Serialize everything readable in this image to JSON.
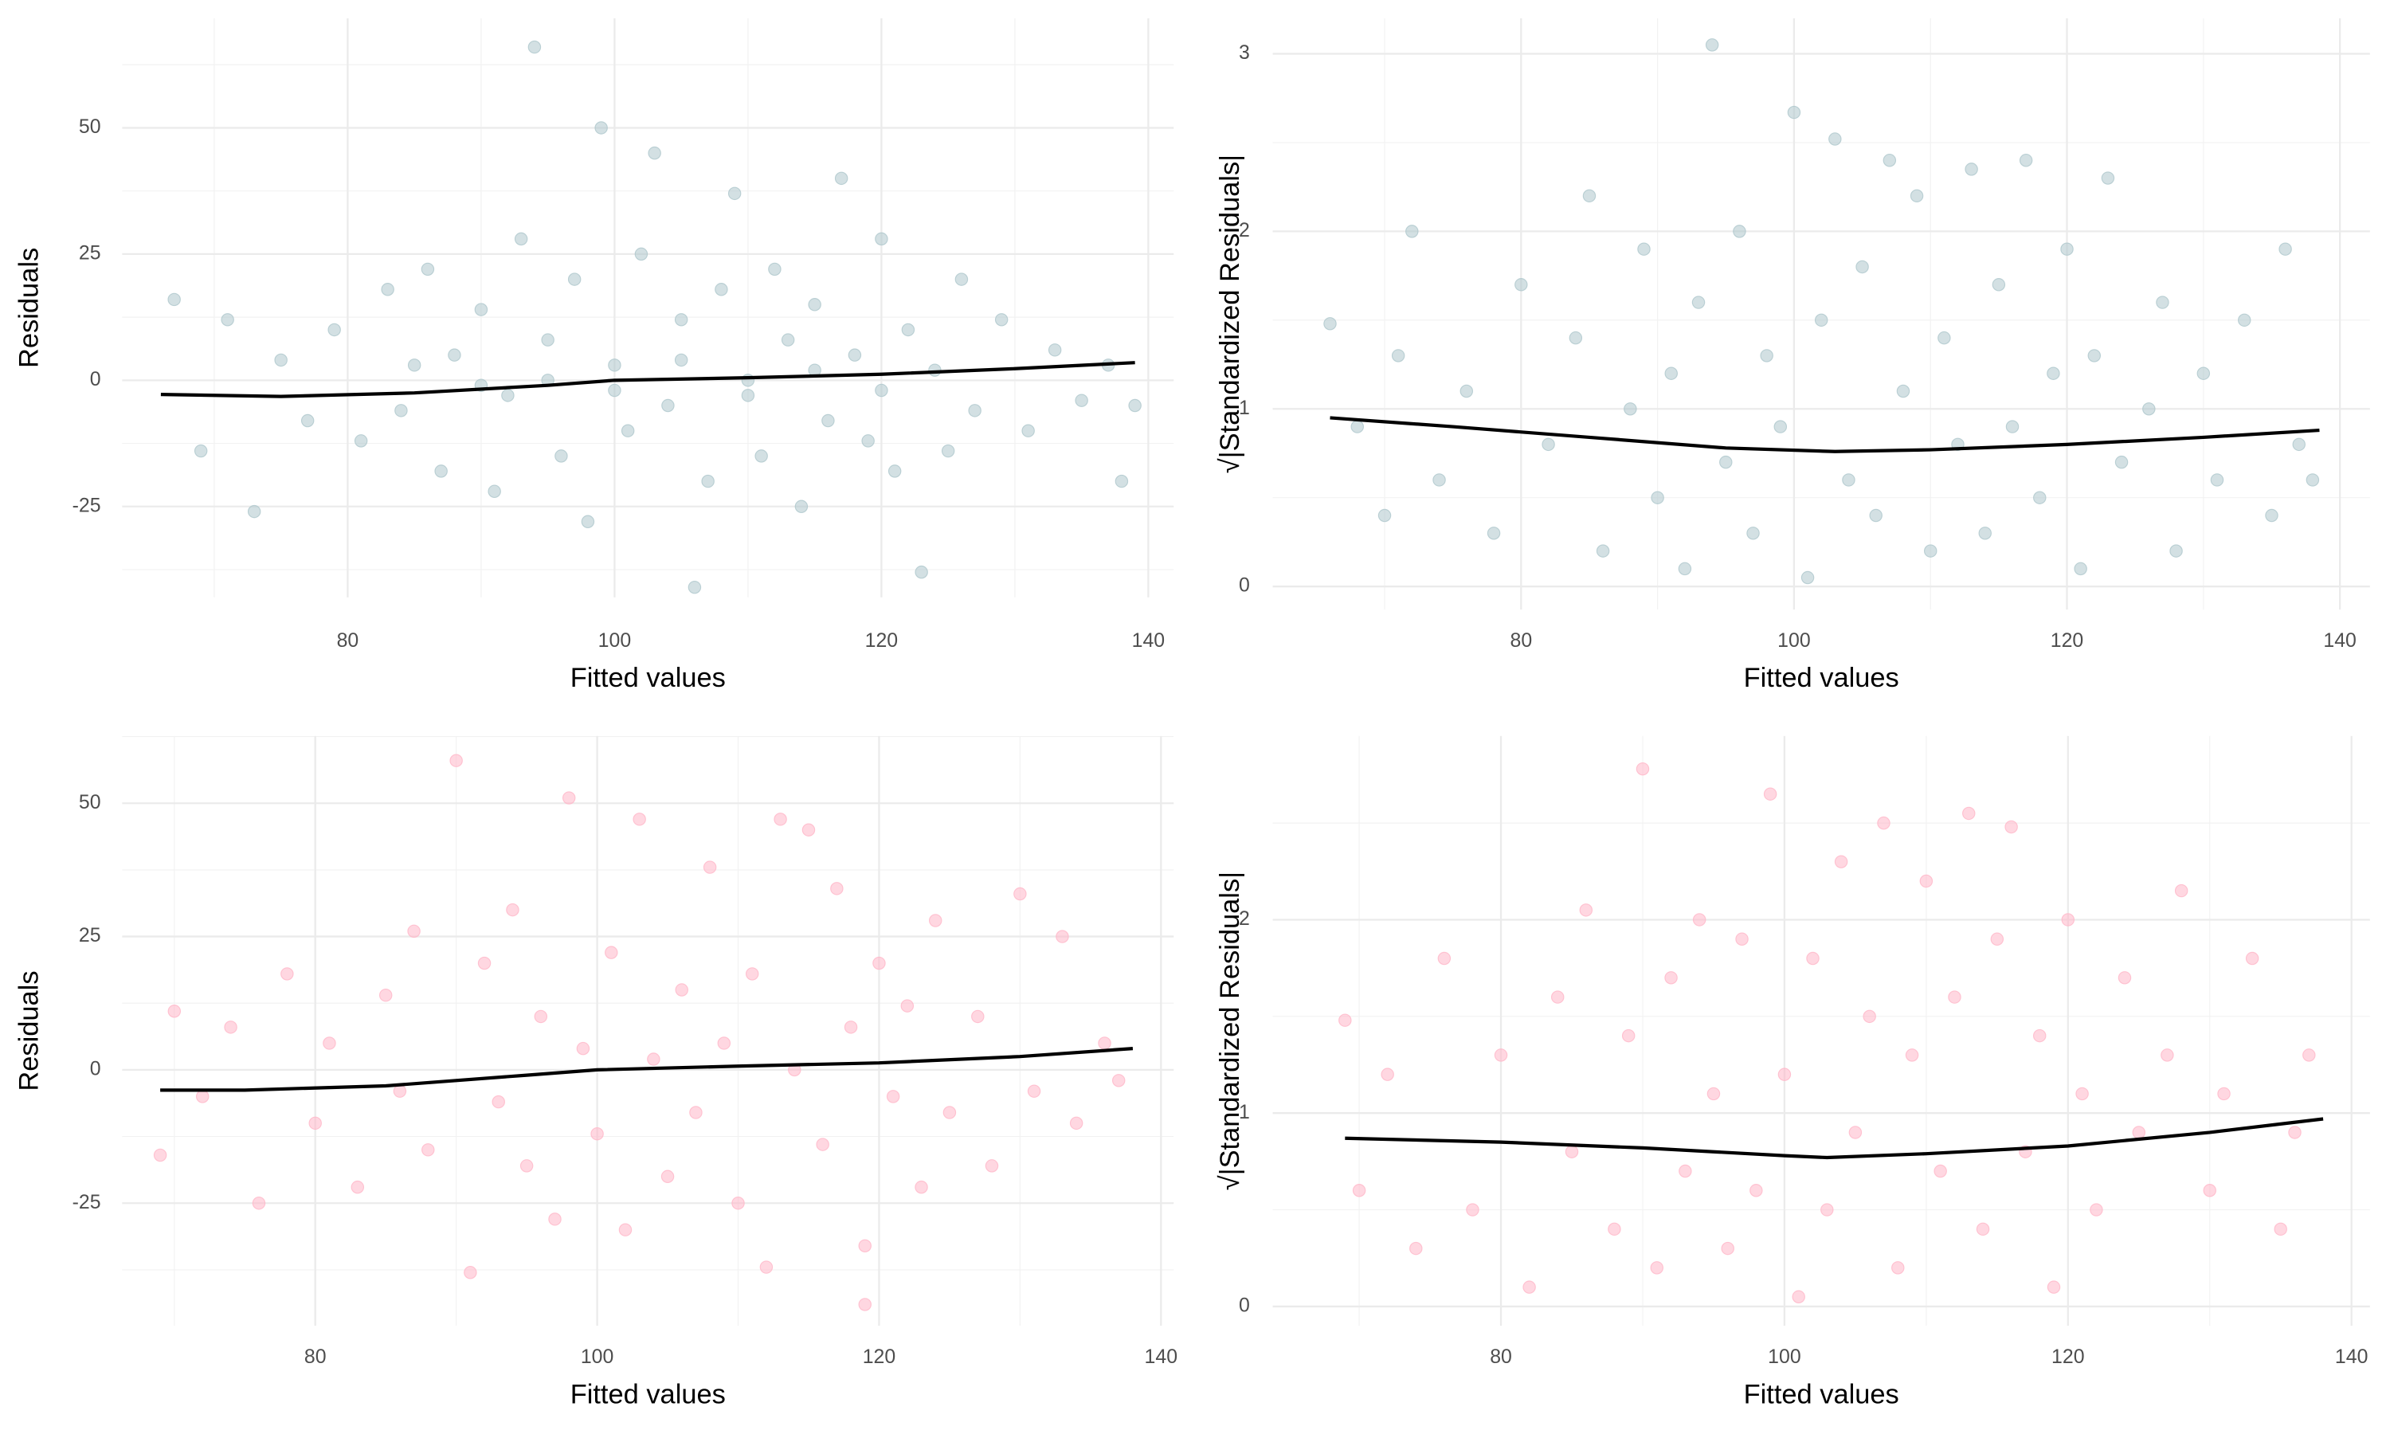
{
  "chart_data": [
    {
      "type": "scatter",
      "x_label": "Fitted values",
      "y_label": "Residuals",
      "color": "#aec7cc",
      "line_color": "#000000",
      "grid": true,
      "xlim": [
        63.1,
        141.9
      ],
      "ylim": [
        -43,
        71.7
      ],
      "xticks": [
        80,
        100,
        120,
        140
      ],
      "yticks": [
        -25,
        0,
        25,
        50
      ],
      "x": [
        67,
        69,
        71,
        73,
        75,
        77,
        79,
        81,
        83,
        84,
        86,
        87,
        88,
        90,
        91,
        92,
        93,
        94,
        95,
        96,
        97,
        98,
        99,
        100,
        101,
        102,
        103,
        104,
        105,
        106,
        107,
        108,
        109,
        110,
        111,
        112,
        113,
        114,
        115,
        116,
        117,
        118,
        119,
        120,
        121,
        122,
        123,
        124,
        125,
        126,
        127,
        129,
        131,
        133,
        135,
        137,
        138,
        139,
        95,
        100,
        105,
        110,
        115,
        90,
        85,
        120
      ],
      "y": [
        16,
        -14,
        12,
        -26,
        4,
        -8,
        10,
        -12,
        18,
        -6,
        22,
        -18,
        5,
        14,
        -22,
        -3,
        28,
        66,
        8,
        -15,
        20,
        -28,
        50,
        3,
        -10,
        25,
        45,
        -5,
        12,
        -41,
        -20,
        18,
        37,
        0,
        -15,
        22,
        8,
        -25,
        15,
        -8,
        40,
        5,
        -12,
        28,
        -18,
        10,
        -38,
        2,
        -14,
        20,
        -6,
        12,
        -10,
        6,
        -4,
        3,
        -20,
        -5,
        0,
        -2,
        4,
        -3,
        2,
        -1,
        3,
        -2
      ],
      "smooth": {
        "x": [
          66,
          75,
          85,
          95,
          100,
          110,
          120,
          130,
          139
        ],
        "y": [
          -2.8,
          -3.2,
          -2.5,
          -1,
          0,
          0.5,
          1.2,
          2.3,
          3.5
        ]
      }
    },
    {
      "type": "scatter",
      "x_label": "Fitted values",
      "y_label": "√|Standardized Residuals|",
      "color": "#aec7cc",
      "line_color": "#000000",
      "grid": true,
      "xlim": [
        61.8,
        142.2
      ],
      "ylim": [
        -0.13,
        3.2
      ],
      "xticks": [
        80,
        100,
        120,
        140
      ],
      "yticks": [
        0,
        1,
        2,
        3
      ],
      "x": [
        66,
        68,
        70,
        71,
        72,
        74,
        76,
        78,
        80,
        82,
        84,
        85,
        86,
        88,
        89,
        90,
        91,
        92,
        93,
        94,
        95,
        96,
        97,
        98,
        99,
        100,
        101,
        102,
        103,
        104,
        105,
        106,
        107,
        108,
        109,
        110,
        111,
        112,
        113,
        114,
        115,
        116,
        117,
        118,
        119,
        120,
        121,
        122,
        123,
        124,
        126,
        127,
        128,
        130,
        131,
        133,
        135,
        136,
        137,
        138
      ],
      "y": [
        1.48,
        0.9,
        0.4,
        1.3,
        2.0,
        0.6,
        1.1,
        0.3,
        1.7,
        0.8,
        1.4,
        2.2,
        0.2,
        1.0,
        1.9,
        0.5,
        1.2,
        0.1,
        1.6,
        3.05,
        0.7,
        2.0,
        0.3,
        1.3,
        0.9,
        2.67,
        0.05,
        1.5,
        2.52,
        0.6,
        1.8,
        0.4,
        2.4,
        1.1,
        2.2,
        0.2,
        1.4,
        0.8,
        2.35,
        0.3,
        1.7,
        0.9,
        2.4,
        0.5,
        1.2,
        1.9,
        0.1,
        1.3,
        2.3,
        0.7,
        1.0,
        1.6,
        0.2,
        1.2,
        0.6,
        1.5,
        0.4,
        1.9,
        0.8,
        0.6
      ],
      "smooth": {
        "x": [
          66,
          75,
          85,
          95,
          103,
          110,
          120,
          130,
          138.5
        ],
        "y": [
          0.95,
          0.9,
          0.84,
          0.78,
          0.76,
          0.77,
          0.8,
          0.84,
          0.88
        ]
      }
    },
    {
      "type": "scatter",
      "x_label": "Fitted values",
      "y_label": "Residuals",
      "color": "#ffb6c8",
      "line_color": "#000000",
      "grid": true,
      "xlim": [
        66.3,
        140.9
      ],
      "ylim": [
        -48,
        62.6
      ],
      "xticks": [
        80,
        100,
        120,
        140
      ],
      "yticks": [
        -25,
        0,
        25,
        50
      ],
      "x": [
        69,
        70,
        72,
        74,
        76,
        78,
        80,
        81,
        83,
        85,
        86,
        87,
        88,
        90,
        91,
        92,
        93,
        94,
        95,
        96,
        97,
        98,
        99,
        100,
        101,
        102,
        103,
        104,
        105,
        106,
        107,
        108,
        109,
        110,
        111,
        112,
        113,
        114,
        115,
        116,
        117,
        118,
        119,
        120,
        121,
        122,
        123,
        124,
        125,
        127,
        128,
        130,
        131,
        133,
        134,
        136,
        137,
        119
      ],
      "y": [
        -16,
        11,
        -5,
        8,
        -25,
        18,
        -10,
        5,
        -22,
        14,
        -4,
        26,
        -15,
        58,
        -38,
        20,
        -6,
        30,
        -18,
        10,
        -28,
        51,
        4,
        -12,
        22,
        -30,
        47,
        2,
        -20,
        15,
        -8,
        38,
        5,
        -25,
        18,
        -37,
        47,
        0,
        45,
        -14,
        34,
        8,
        -33,
        20,
        -5,
        12,
        -22,
        28,
        -8,
        10,
        -18,
        33,
        -4,
        25,
        -10,
        5,
        -2,
        -44
      ],
      "smooth": {
        "x": [
          69,
          75,
          85,
          95,
          100,
          110,
          120,
          130,
          138
        ],
        "y": [
          -3.8,
          -3.8,
          -3,
          -1,
          0,
          0.7,
          1.3,
          2.5,
          4
        ]
      }
    },
    {
      "type": "scatter",
      "x_label": "Fitted values",
      "y_label": "√|Standardized Residuals|",
      "color": "#ffb6c8",
      "line_color": "#000000",
      "grid": true,
      "xlim": [
        63.9,
        141.3
      ],
      "ylim": [
        -0.1,
        2.95
      ],
      "xticks": [
        80,
        100,
        120,
        140
      ],
      "yticks": [
        0,
        1,
        2
      ],
      "x": [
        69,
        70,
        72,
        74,
        76,
        78,
        80,
        82,
        84,
        85,
        86,
        88,
        89,
        90,
        91,
        92,
        93,
        94,
        95,
        96,
        97,
        98,
        99,
        100,
        101,
        102,
        103,
        104,
        105,
        106,
        107,
        108,
        109,
        110,
        111,
        112,
        113,
        114,
        115,
        116,
        117,
        118,
        119,
        120,
        121,
        122,
        124,
        125,
        127,
        128,
        130,
        131,
        133,
        135,
        136,
        137
      ],
      "y": [
        1.48,
        0.6,
        1.2,
        0.3,
        1.8,
        0.5,
        1.3,
        0.1,
        1.6,
        0.8,
        2.05,
        0.4,
        1.4,
        2.78,
        0.2,
        1.7,
        0.7,
        2.0,
        1.1,
        0.3,
        1.9,
        0.6,
        2.65,
        1.2,
        0.05,
        1.8,
        0.5,
        2.3,
        0.9,
        1.5,
        2.5,
        0.2,
        1.3,
        2.2,
        0.7,
        1.6,
        2.55,
        0.4,
        1.9,
        2.48,
        0.8,
        1.4,
        0.1,
        2.0,
        1.1,
        0.5,
        1.7,
        0.9,
        1.3,
        2.15,
        0.6,
        1.1,
        1.8,
        0.4,
        0.9,
        1.3
      ],
      "smooth": {
        "x": [
          69,
          80,
          90,
          100,
          103,
          110,
          120,
          130,
          138
        ],
        "y": [
          0.87,
          0.85,
          0.82,
          0.78,
          0.77,
          0.79,
          0.83,
          0.9,
          0.97
        ]
      }
    }
  ]
}
